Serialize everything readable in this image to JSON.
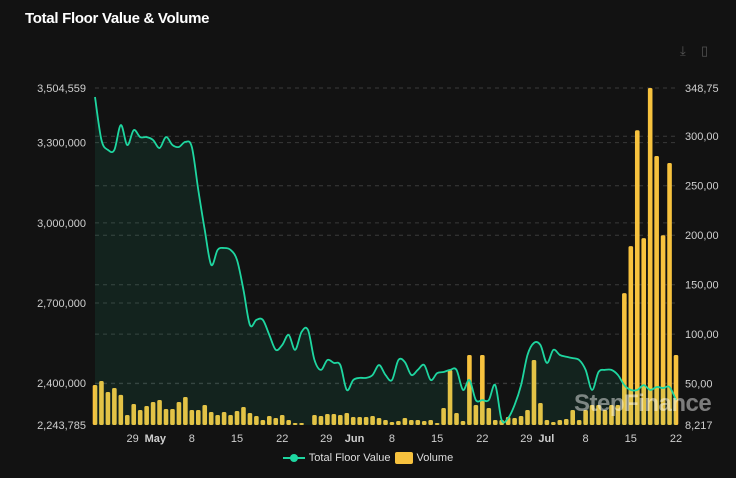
{
  "title": "Total Floor Value & Volume",
  "toolbar": {
    "download_icon": "download-icon",
    "csv_icon": "file-icon"
  },
  "watermark": "StepFinance",
  "colors": {
    "floor_value": "#1ed6a0",
    "volume": "#f7c23e",
    "background": "#121212"
  },
  "chart_data": {
    "type": "bar+line",
    "title": "Total Floor Value & Volume",
    "x_tick_labels": [
      "29",
      "May",
      "8",
      "15",
      "22",
      "29",
      "Jun",
      "8",
      "15",
      "22",
      "29",
      "Jul",
      "8",
      "15",
      "22"
    ],
    "x_tick_dates": [
      "Apr 29",
      "May 1",
      "May 8",
      "May 15",
      "May 22",
      "May 29",
      "Jun 1",
      "Jun 8",
      "Jun 15",
      "Jun 22",
      "Jun 29",
      "Jul 1",
      "Jul 8",
      "Jul 15",
      "Jul 22"
    ],
    "left_axis": {
      "ticks": [
        "3,504,559",
        "3,300,000",
        "3,000,000",
        "2,700,000",
        "2,400,000",
        "2,243,785"
      ],
      "tick_values": [
        3504559,
        3300000,
        3000000,
        2700000,
        2400000,
        2243785
      ],
      "range": [
        2243785,
        3504559
      ]
    },
    "right_axis": {
      "ticks": [
        "348,75",
        "300,00",
        "250,00",
        "200,00",
        "150,00",
        "100,00",
        "50,00",
        "8,217"
      ],
      "tick_values": [
        348750,
        300000,
        250000,
        200000,
        150000,
        100000,
        50000,
        8217
      ],
      "range": [
        8217,
        348750
      ]
    },
    "grid": true,
    "legend_position": "bottom",
    "start": "Apr 23",
    "end": "Jul 22",
    "series": [
      {
        "name": "Total Floor Value",
        "type": "area-line",
        "axis": "left",
        "unit": "thousands",
        "values": [
          3471,
          3310,
          3273,
          3273,
          3366,
          3291,
          3347,
          3321,
          3321,
          3310,
          3280,
          3321,
          3291,
          3284,
          3303,
          3284,
          3123,
          2974,
          2843,
          2899,
          2906,
          2899,
          2861,
          2749,
          2618,
          2637,
          2637,
          2581,
          2525,
          2543,
          2581,
          2525,
          2592,
          2599,
          2487,
          2450,
          2487,
          2476,
          2468,
          2375,
          2412,
          2420,
          2420,
          2431,
          2468,
          2431,
          2412,
          2487,
          2479,
          2431,
          2450,
          2468,
          2412,
          2438,
          2442,
          2450,
          2450,
          2375,
          2412,
          2337,
          2337,
          2337,
          2393,
          2262,
          2270,
          2319,
          2393,
          2506,
          2551,
          2543,
          2476,
          2525,
          2506,
          2499,
          2494,
          2487,
          2450,
          2375,
          2442,
          2450,
          2450,
          2431,
          2393,
          2375,
          2375,
          2393,
          2375,
          2386,
          2382,
          2386,
          2337
        ]
      },
      {
        "name": "Volume",
        "type": "bar",
        "axis": "right",
        "unit": "thousands",
        "values": [
          48.6,
          52.7,
          41.6,
          45.6,
          38.6,
          18.3,
          29.4,
          23.4,
          27.4,
          31.4,
          33.5,
          24.4,
          24.4,
          31.4,
          36.5,
          23.4,
          23.4,
          28.4,
          21.3,
          18.3,
          21.3,
          18.3,
          22.4,
          26.4,
          20.3,
          17.3,
          13.3,
          17.3,
          15.3,
          18.3,
          13.3,
          10.2,
          10.2,
          8.2,
          18.3,
          17.3,
          19.3,
          19.3,
          18.3,
          20.3,
          16.3,
          16.3,
          16.3,
          17.3,
          15.3,
          13.3,
          11.2,
          12.3,
          15.3,
          13.3,
          13.3,
          12.3,
          13.3,
          10.2,
          25.4,
          63.8,
          20.3,
          12.3,
          78.9,
          28.4,
          78.9,
          25.4,
          13.3,
          13.3,
          16.3,
          15.3,
          17.3,
          23.4,
          73.9,
          30.4,
          13.3,
          11.2,
          13.3,
          14.3,
          23.4,
          13.3,
          23.4,
          28.4,
          28.4,
          23.4,
          28.4,
          28.4,
          141.5,
          189,
          306,
          197,
          348.7,
          280,
          200,
          273,
          78.9
        ]
      }
    ]
  }
}
